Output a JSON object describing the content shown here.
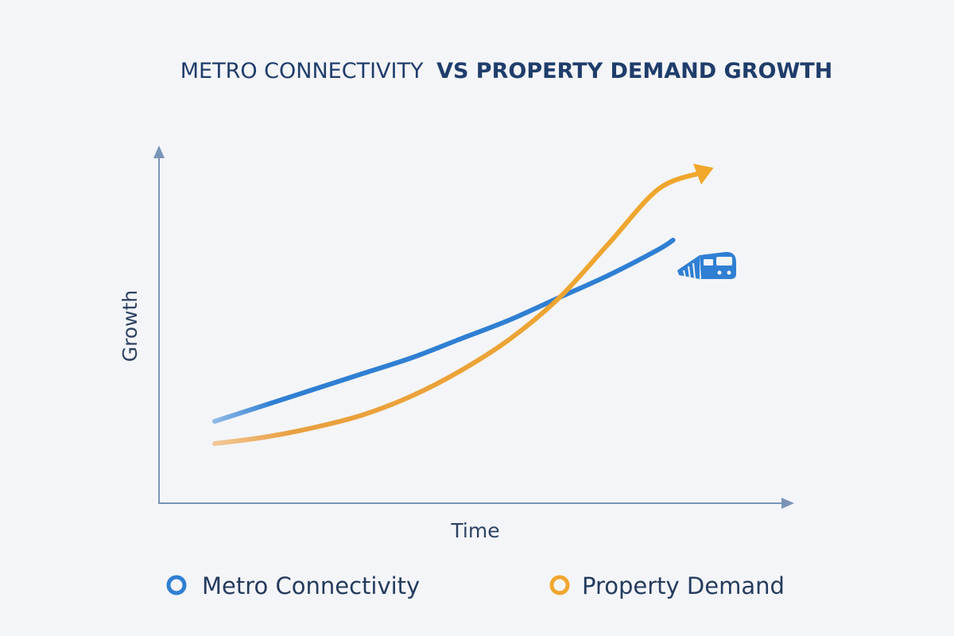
{
  "title_light": "METRO CONNECTIVITY",
  "title_bold": "VS PROPERTY DEMAND GROWTH",
  "colors": {
    "metro": "#2f7fd3",
    "property": "#f0a730",
    "axis": "#7a94b8",
    "title": "#1f3d6b"
  },
  "legend_icon": "train-icon",
  "chart_data": {
    "type": "line",
    "title": "METRO CONNECTIVITY VS PROPERTY DEMAND GROWTH",
    "xlabel": "Time",
    "ylabel": "Growth",
    "xlim": [
      0,
      10
    ],
    "ylim": [
      0,
      10
    ],
    "grid": false,
    "legend_position": "bottom",
    "series": [
      {
        "name": "Metro Connectivity",
        "color": "#2f7fd3",
        "x": [
          0,
          1,
          2,
          3,
          4,
          5,
          6,
          7,
          8,
          9,
          9.3
        ],
        "y": [
          2.0,
          2.5,
          3.0,
          3.5,
          4.0,
          4.6,
          5.2,
          5.9,
          6.6,
          7.4,
          7.7
        ]
      },
      {
        "name": "Property Demand",
        "color": "#f0a730",
        "x": [
          0,
          1,
          2,
          3,
          4,
          5,
          6,
          7,
          8,
          9,
          10
        ],
        "y": [
          1.3,
          1.5,
          1.8,
          2.2,
          2.8,
          3.6,
          4.6,
          5.9,
          7.6,
          9.3,
          9.9
        ]
      }
    ]
  }
}
